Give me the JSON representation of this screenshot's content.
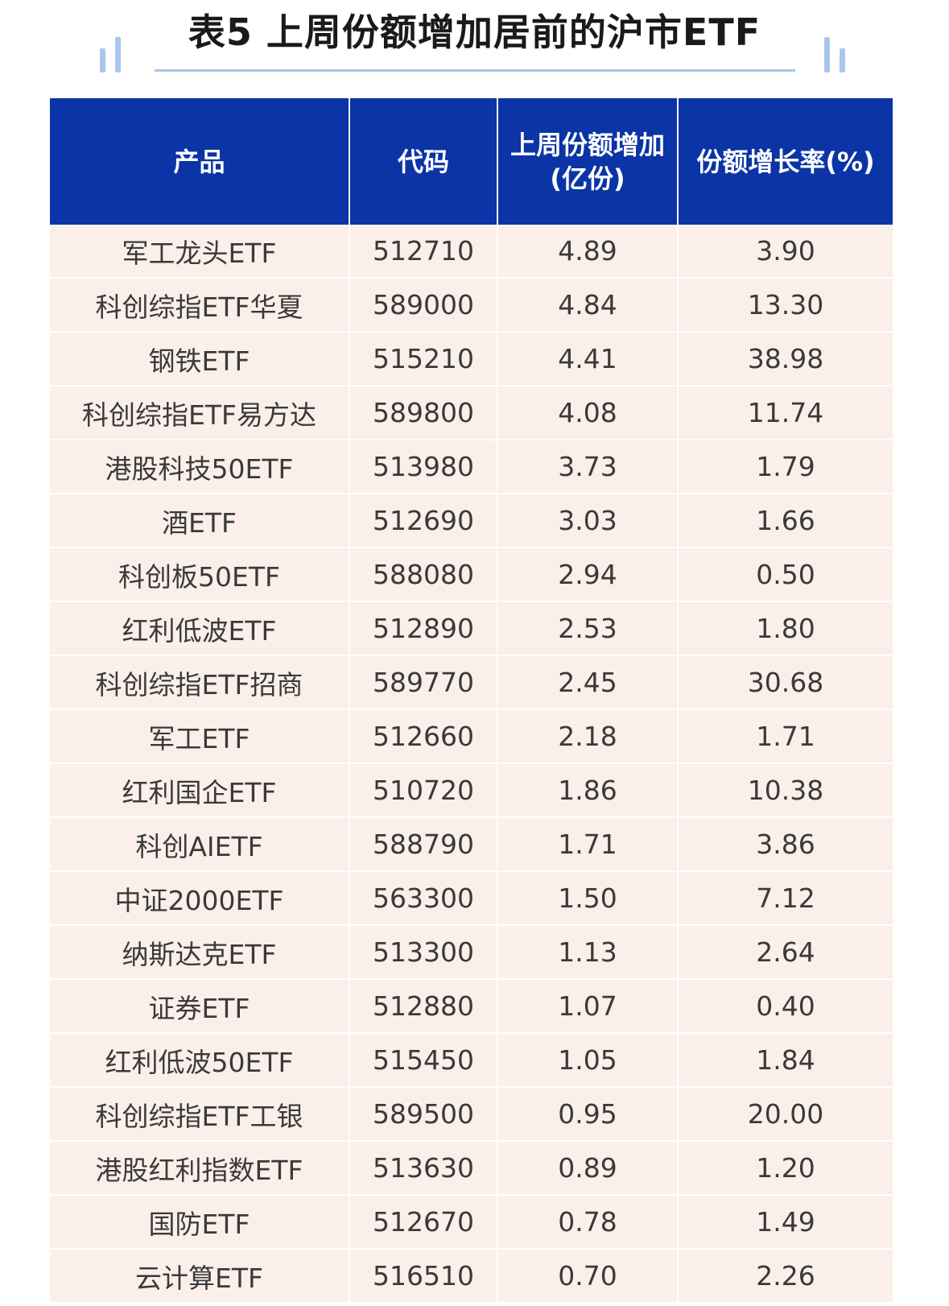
{
  "header": {
    "title": "表5 上周份额增加居前的沪市ETF"
  },
  "table": {
    "columns": [
      [
        "产品"
      ],
      [
        "代码"
      ],
      [
        "上周份额增加",
        "(亿份)"
      ],
      [
        "份额增长率(%)"
      ]
    ],
    "rows": [
      [
        "军工龙头ETF",
        "512710",
        "4.89",
        "3.90"
      ],
      [
        "科创综指ETF华夏",
        "589000",
        "4.84",
        "13.30"
      ],
      [
        "钢铁ETF",
        "515210",
        "4.41",
        "38.98"
      ],
      [
        "科创综指ETF易方达",
        "589800",
        "4.08",
        "11.74"
      ],
      [
        "港股科技50ETF",
        "513980",
        "3.73",
        "1.79"
      ],
      [
        "酒ETF",
        "512690",
        "3.03",
        "1.66"
      ],
      [
        "科创板50ETF",
        "588080",
        "2.94",
        "0.50"
      ],
      [
        "红利低波ETF",
        "512890",
        "2.53",
        "1.80"
      ],
      [
        "科创综指ETF招商",
        "589770",
        "2.45",
        "30.68"
      ],
      [
        "军工ETF",
        "512660",
        "2.18",
        "1.71"
      ],
      [
        "红利国企ETF",
        "510720",
        "1.86",
        "10.38"
      ],
      [
        "科创AIETF",
        "588790",
        "1.71",
        "3.86"
      ],
      [
        "中证2000ETF",
        "563300",
        "1.50",
        "7.12"
      ],
      [
        "纳斯达克ETF",
        "513300",
        "1.13",
        "2.64"
      ],
      [
        "证券ETF",
        "512880",
        "1.07",
        "0.40"
      ],
      [
        "红利低波50ETF",
        "515450",
        "1.05",
        "1.84"
      ],
      [
        "科创综指ETF工银",
        "589500",
        "0.95",
        "20.00"
      ],
      [
        "港股红利指数ETF",
        "513630",
        "0.89",
        "1.20"
      ],
      [
        "国防ETF",
        "512670",
        "0.78",
        "1.49"
      ],
      [
        "云计算ETF",
        "516510",
        "0.70",
        "2.26"
      ]
    ]
  }
}
